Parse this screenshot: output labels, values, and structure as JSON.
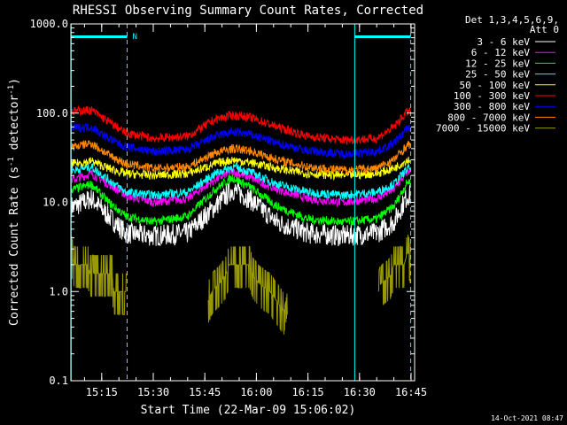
{
  "chart_data": {
    "type": "line",
    "title": "RHESSI Observing Summary Count Rates, Corrected",
    "xlabel": "Start Time (22-Mar-09 15:06:02)",
    "ylabel_pre": "Corrected Count Rate (s",
    "ylabel_mid": " detector",
    "ylabel_post": ")",
    "ylabel_sup": "-1",
    "y_scale": "log",
    "xlim_minutes_after_1500": [
      6.03,
      106.03
    ],
    "ylim": [
      0.1,
      1000
    ],
    "x_ticks": [
      {
        "label": "15:15",
        "minute": 15
      },
      {
        "label": "15:30",
        "minute": 30
      },
      {
        "label": "15:45",
        "minute": 45
      },
      {
        "label": "16:00",
        "minute": 60
      },
      {
        "label": "16:15",
        "minute": 75
      },
      {
        "label": "16:30",
        "minute": 90
      },
      {
        "label": "16:45",
        "minute": 105
      }
    ],
    "y_ticks": [
      {
        "label": "0.1",
        "value": 0.1
      },
      {
        "label": "1.0",
        "value": 1
      },
      {
        "label": "10.0",
        "value": 10
      },
      {
        "label": "100.0",
        "value": 100
      },
      {
        "label": "1000.0",
        "value": 1000
      }
    ],
    "legend_header": [
      "Det 1,3,4,5,6,9,",
      "Att 0"
    ],
    "legend_position": "right",
    "series": [
      {
        "name": "3 - 6 keV",
        "color": "#ffffff",
        "points": [
          [
            7,
            9
          ],
          [
            12,
            11
          ],
          [
            17,
            7
          ],
          [
            22,
            4.5
          ],
          [
            30,
            4.2
          ],
          [
            40,
            4.5
          ],
          [
            48,
            9
          ],
          [
            53,
            14
          ],
          [
            58,
            11
          ],
          [
            66,
            6
          ],
          [
            75,
            4.5
          ],
          [
            85,
            4.2
          ],
          [
            95,
            4.5
          ],
          [
            100,
            6
          ],
          [
            104,
            12
          ]
        ]
      },
      {
        "name": "6 - 12 keV",
        "color": "#ff00ff",
        "points": [
          [
            7,
            18
          ],
          [
            12,
            21
          ],
          [
            17,
            16
          ],
          [
            22,
            12
          ],
          [
            30,
            10
          ],
          [
            40,
            11
          ],
          [
            48,
            18
          ],
          [
            53,
            22
          ],
          [
            58,
            19
          ],
          [
            66,
            14
          ],
          [
            75,
            11
          ],
          [
            85,
            10
          ],
          [
            95,
            11
          ],
          [
            100,
            14
          ],
          [
            104,
            22
          ]
        ]
      },
      {
        "name": "12 - 25 keV",
        "color": "#00ff00",
        "points": [
          [
            7,
            14
          ],
          [
            12,
            16
          ],
          [
            17,
            10
          ],
          [
            22,
            7
          ],
          [
            30,
            6
          ],
          [
            40,
            7
          ],
          [
            48,
            14
          ],
          [
            53,
            19
          ],
          [
            58,
            15
          ],
          [
            66,
            9
          ],
          [
            75,
            6.5
          ],
          [
            85,
            6
          ],
          [
            95,
            6.5
          ],
          [
            100,
            9
          ],
          [
            104,
            17
          ]
        ]
      },
      {
        "name": "25 - 50 keV",
        "color": "#00ffff",
        "points": [
          [
            7,
            23
          ],
          [
            12,
            25
          ],
          [
            17,
            18
          ],
          [
            22,
            13
          ],
          [
            30,
            12
          ],
          [
            40,
            13
          ],
          [
            48,
            21
          ],
          [
            53,
            25
          ],
          [
            58,
            22
          ],
          [
            66,
            16
          ],
          [
            75,
            13
          ],
          [
            85,
            12
          ],
          [
            95,
            13
          ],
          [
            100,
            16
          ],
          [
            104,
            24
          ]
        ]
      },
      {
        "name": "50 - 100 keV",
        "color": "#ffff00",
        "points": [
          [
            7,
            27
          ],
          [
            12,
            29
          ],
          [
            17,
            24
          ],
          [
            22,
            21
          ],
          [
            30,
            20
          ],
          [
            40,
            21
          ],
          [
            48,
            27
          ],
          [
            53,
            30
          ],
          [
            58,
            28
          ],
          [
            66,
            24
          ],
          [
            75,
            21
          ],
          [
            85,
            20
          ],
          [
            95,
            21
          ],
          [
            100,
            24
          ],
          [
            104,
            30
          ]
        ]
      },
      {
        "name": "100 - 300 keV",
        "color": "#ff0000",
        "points": [
          [
            7,
            105
          ],
          [
            12,
            108
          ],
          [
            17,
            80
          ],
          [
            22,
            60
          ],
          [
            30,
            52
          ],
          [
            40,
            55
          ],
          [
            48,
            85
          ],
          [
            53,
            95
          ],
          [
            58,
            90
          ],
          [
            66,
            70
          ],
          [
            75,
            55
          ],
          [
            85,
            50
          ],
          [
            95,
            52
          ],
          [
            100,
            70
          ],
          [
            104,
            105
          ]
        ]
      },
      {
        "name": "300 - 800 keV",
        "color": "#0000ff",
        "points": [
          [
            7,
            68
          ],
          [
            12,
            70
          ],
          [
            17,
            52
          ],
          [
            22,
            42
          ],
          [
            30,
            37
          ],
          [
            40,
            39
          ],
          [
            48,
            55
          ],
          [
            53,
            62
          ],
          [
            58,
            58
          ],
          [
            66,
            46
          ],
          [
            75,
            38
          ],
          [
            85,
            35
          ],
          [
            95,
            37
          ],
          [
            100,
            46
          ],
          [
            104,
            68
          ]
        ]
      },
      {
        "name": "800 - 7000 keV",
        "color": "#ff8800",
        "points": [
          [
            7,
            42
          ],
          [
            12,
            46
          ],
          [
            17,
            34
          ],
          [
            22,
            27
          ],
          [
            30,
            24
          ],
          [
            40,
            25
          ],
          [
            48,
            36
          ],
          [
            53,
            40
          ],
          [
            58,
            38
          ],
          [
            66,
            30
          ],
          [
            75,
            25
          ],
          [
            85,
            23
          ],
          [
            95,
            24
          ],
          [
            100,
            30
          ],
          [
            104,
            44
          ]
        ]
      },
      {
        "name": "7000 - 15000 keV",
        "color": "#999900",
        "segments": [
          [
            [
              6.1,
              2.8
            ],
            [
              7,
              2
            ],
            [
              11,
              2
            ],
            [
              11.5,
              1.6
            ],
            [
              18,
              1.6
            ],
            [
              18.5,
              1
            ],
            [
              22.2,
              1
            ]
          ],
          [
            [
              46,
              0.8
            ],
            [
              47,
              1
            ],
            [
              49,
              1.2
            ],
            [
              51,
              1.5
            ],
            [
              52,
              2
            ],
            [
              58,
              2
            ],
            [
              59,
              1.5
            ],
            [
              61,
              1.2
            ],
            [
              64,
              1
            ],
            [
              68,
              0.6
            ],
            [
              69,
              1
            ]
          ],
          [
            [
              95.5,
              1
            ],
            [
              96,
              1.2
            ],
            [
              99,
              1.5
            ],
            [
              100,
              2
            ],
            [
              103,
              2
            ],
            [
              104,
              2.8
            ],
            [
              104.8,
              2.2
            ]
          ]
        ]
      }
    ],
    "annotations": {
      "vertical_solid": [
        6.1,
        88.6
      ],
      "vertical_dashed": [
        22.4,
        104.9
      ],
      "night_bars": [
        [
          6.1,
          22.4
        ],
        [
          88.6,
          104.9
        ]
      ],
      "night_label": "N",
      "timestamp": "14-Oct-2021 08:47"
    }
  },
  "colors": {
    "background": "#000000",
    "axes": "#ffffff",
    "annotation": "#00ffff"
  }
}
